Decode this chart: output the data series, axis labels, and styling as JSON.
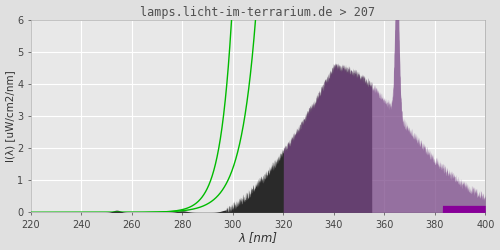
{
  "title": "lamps.licht-im-terrarium.de > 207",
  "xlabel": "λ [nm]",
  "ylabel": "I(λ) [uW/cm2/nm]",
  "xlim": [
    220,
    400
  ],
  "ylim": [
    0,
    6.0
  ],
  "yticks": [
    0.0,
    1.0,
    2.0,
    3.0,
    4.0,
    5.0,
    6.0
  ],
  "xticks": [
    220,
    240,
    260,
    280,
    300,
    320,
    340,
    360,
    380,
    400
  ],
  "bg_color": "#e0e0e0",
  "plot_bg_color": "#e8e8e8",
  "grid_color": "#ffffff",
  "title_color": "#505050",
  "green_line_color": "#00bb00",
  "dark_color": "#2a2a2a",
  "purple_color": "#6a4a7a",
  "bright_purple": "#880099"
}
